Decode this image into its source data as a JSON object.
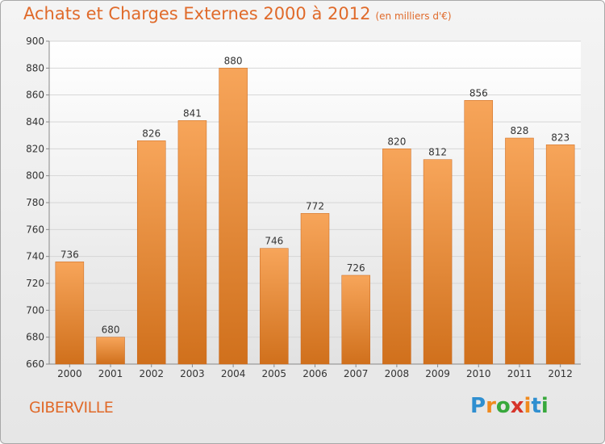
{
  "header": {
    "title": "Achats et Charges Externes 2000 à 2012",
    "subtitle": "(en milliers d'€)"
  },
  "footer": {
    "commune": "GIBERVILLE",
    "logo": {
      "letters": [
        "P",
        "r",
        "o",
        "x",
        "i",
        "t",
        "i"
      ],
      "colors": [
        "#2f8fd0",
        "#f08a1e",
        "#38a83c",
        "#d6342a",
        "#f08a1e",
        "#2f8fd0",
        "#38a83c"
      ]
    }
  },
  "chart_data": {
    "type": "bar",
    "title": "Achats et Charges Externes 2000 à 2012",
    "subtitle": "(en milliers d'€)",
    "categories": [
      "2000",
      "2001",
      "2002",
      "2003",
      "2004",
      "2005",
      "2006",
      "2007",
      "2008",
      "2009",
      "2010",
      "2011",
      "2012"
    ],
    "values": [
      736,
      680,
      826,
      841,
      880,
      746,
      772,
      726,
      820,
      812,
      856,
      828,
      823
    ],
    "ylim": [
      660,
      900
    ],
    "yticks": [
      660,
      680,
      700,
      720,
      740,
      760,
      780,
      800,
      820,
      840,
      860,
      880,
      900
    ],
    "grid": true,
    "colors": {
      "bar_light": "#f7a55a",
      "bar_dark": "#d0701c",
      "text": "#333333",
      "title": "#e06a2a"
    }
  }
}
